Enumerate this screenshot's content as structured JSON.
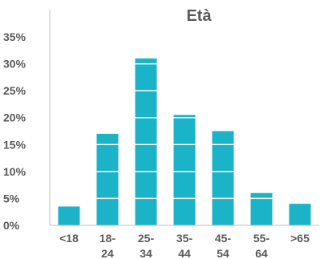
{
  "chart_data": {
    "type": "bar",
    "title": "Età",
    "xlabel": "",
    "ylabel": "",
    "categories": [
      [
        "<18"
      ],
      [
        "18-",
        "24"
      ],
      [
        "25-",
        "34"
      ],
      [
        "35-",
        "44"
      ],
      [
        "45-",
        "54"
      ],
      [
        "55-",
        "64"
      ],
      [
        ">65"
      ]
    ],
    "values": [
      3.5,
      17,
      31,
      20.5,
      17.5,
      6,
      4
    ],
    "ylim": [
      0,
      35
    ],
    "yticks": [
      0,
      5,
      10,
      15,
      20,
      25,
      30,
      35
    ],
    "ytick_labels": [
      "0%",
      "5%",
      "10%",
      "15%",
      "20%",
      "25%",
      "30%",
      "35%"
    ],
    "grid": true,
    "grid_style": "white-lines-through-bars",
    "colors": {
      "bar": "#1AB3C8",
      "axis": "#BFBFBF",
      "text": "#595959"
    }
  }
}
